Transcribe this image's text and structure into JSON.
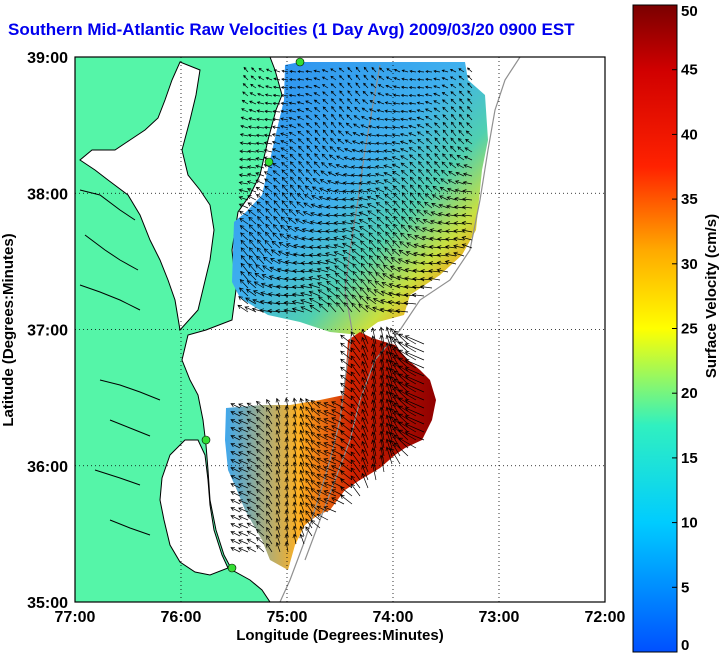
{
  "map": {
    "title": "Southern Mid-Atlantic Raw Velocities (1 Day Avg) 2009/03/20 0900 EST",
    "xlabel": "Longitude (Degrees:Minutes)",
    "ylabel": "Latitude (Degrees:Minutes)",
    "x_ticks": [
      "77:00",
      "76:00",
      "75:00",
      "74:00",
      "73:00",
      "72:00"
    ],
    "y_ticks": [
      "39:00",
      "38:00",
      "37:00",
      "36:00",
      "35:00"
    ],
    "lon_range": [
      -77,
      -72
    ],
    "lat_range": [
      35,
      39
    ],
    "grid": true,
    "land_color": "#55f5a8",
    "station_color": "#33dd33"
  },
  "colorbar": {
    "label": "Surface Velocity (cm/s)",
    "ticks": [
      "0",
      "5",
      "10",
      "15",
      "20",
      "25",
      "30",
      "35",
      "40",
      "45",
      "50"
    ],
    "range": [
      0,
      50
    ]
  }
}
